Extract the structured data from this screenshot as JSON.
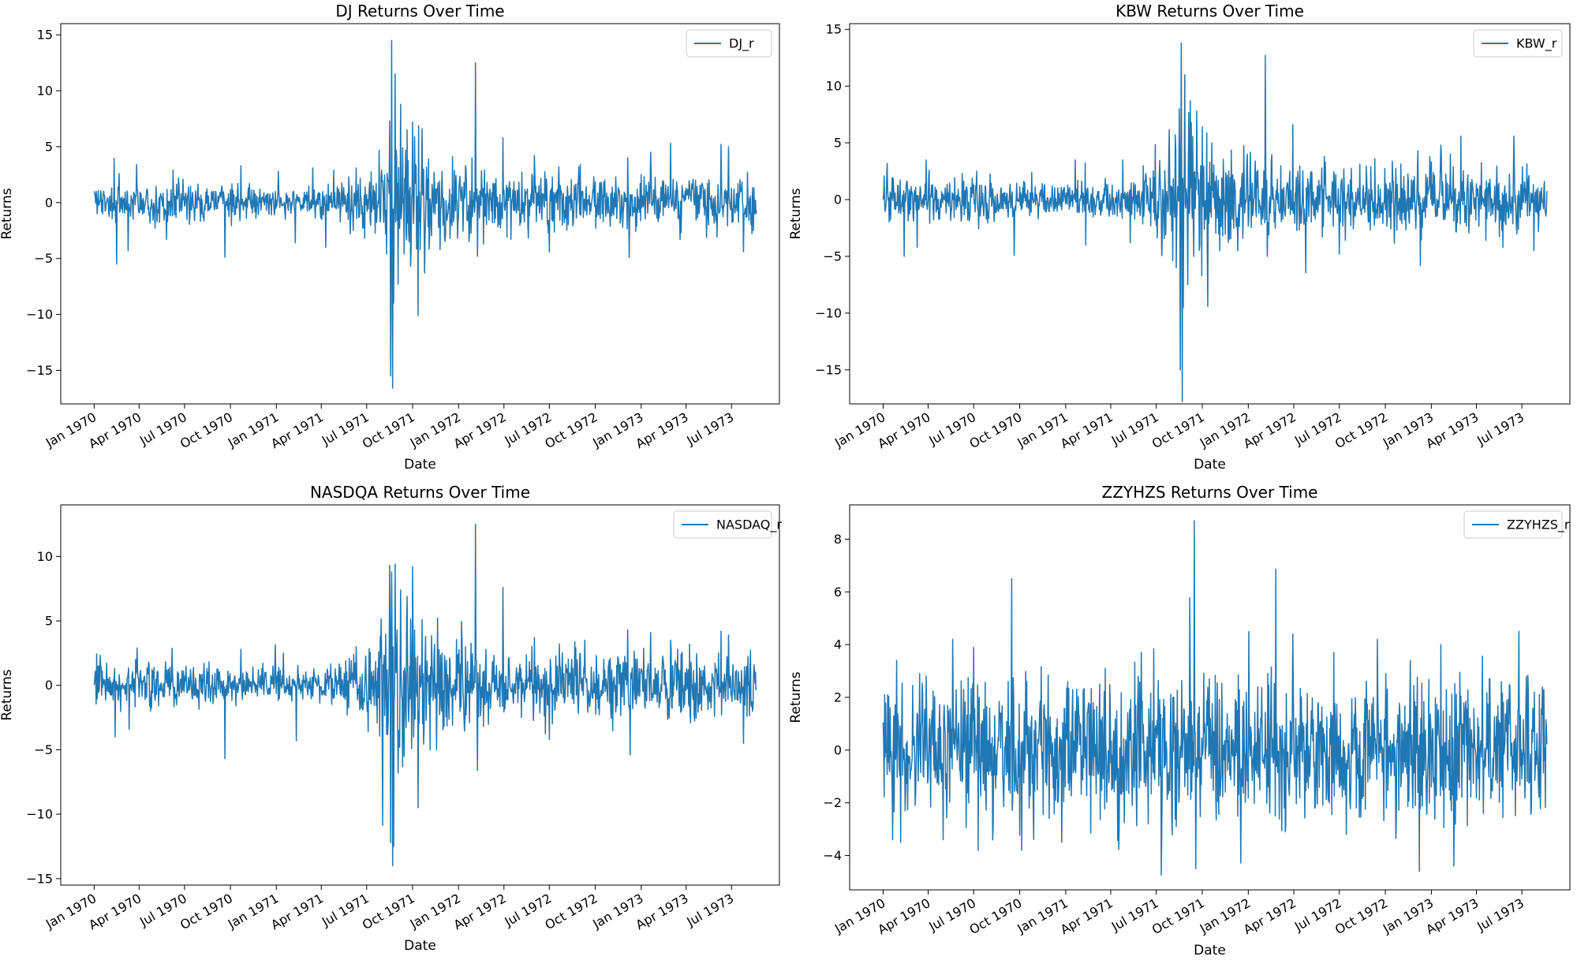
{
  "chart_data": [
    {
      "type": "line",
      "title": "DJ Returns Over Time",
      "xlabel": "Date",
      "ylabel": "Returns",
      "x_tick_labels": [
        "Jan 1970",
        "Apr 1970",
        "Jul 1970",
        "Oct 1970",
        "Jan 1971",
        "Apr 1971",
        "Jul 1971",
        "Oct 1971",
        "Jan 1972",
        "Apr 1972",
        "Jul 1972",
        "Oct 1972",
        "Jan 1973",
        "Apr 1973",
        "Jul 1973"
      ],
      "xlim": [
        "1969-10-26",
        "1973-10-05"
      ],
      "y_ticks": [
        -15,
        -10,
        -5,
        0,
        5,
        10,
        15
      ],
      "ylim": [
        -18,
        16
      ],
      "grid": false,
      "legend_position": "top-right",
      "color": "#1f77b4",
      "series": [
        {
          "name": "DJ_r",
          "base_std": [
            [
              0,
              0.9
            ],
            [
              0.33,
              0.6
            ],
            [
              0.376,
              0.9
            ],
            [
              0.45,
              2.5
            ],
            [
              0.55,
              1.8
            ],
            [
              0.6,
              1.2
            ],
            [
              1,
              1.2
            ]
          ],
          "spikes": [
            {
              "x": "1970-01-02",
              "y": 0.8
            },
            {
              "x": "1970-02-15",
              "y": -5.5
            },
            {
              "x": "1970-02-20",
              "y": 2.6
            },
            {
              "x": "1970-03-27",
              "y": 3.4
            },
            {
              "x": "1970-03-10",
              "y": -4.3
            },
            {
              "x": "1970-06-08",
              "y": 2.9
            },
            {
              "x": "1970-09-20",
              "y": -4.9
            },
            {
              "x": "1970-10-22",
              "y": 3.3
            },
            {
              "x": "1971-01-05",
              "y": 2.8
            },
            {
              "x": "1971-02-08",
              "y": -3.6
            },
            {
              "x": "1971-03-15",
              "y": 3.1
            },
            {
              "x": "1971-04-10",
              "y": -4.0
            },
            {
              "x": "1971-04-26",
              "y": 2.9
            },
            {
              "x": "1971-06-10",
              "y": 3.1
            },
            {
              "x": "1971-08-10",
              "y": -4.6
            },
            {
              "x": "1971-08-16",
              "y": 7.3
            },
            {
              "x": "1971-08-18",
              "y": -15.5
            },
            {
              "x": "1971-08-20",
              "y": 14.5
            },
            {
              "x": "1971-08-22",
              "y": -16.6
            },
            {
              "x": "1971-08-24",
              "y": -9.0
            },
            {
              "x": "1971-08-27",
              "y": 11.5
            },
            {
              "x": "1971-09-02",
              "y": -7.3
            },
            {
              "x": "1971-09-07",
              "y": 8.8
            },
            {
              "x": "1971-09-14",
              "y": -4.6
            },
            {
              "x": "1971-09-20",
              "y": 6.5
            },
            {
              "x": "1971-09-27",
              "y": -5.7
            },
            {
              "x": "1971-10-01",
              "y": 7.2
            },
            {
              "x": "1971-10-05",
              "y": 5.9
            },
            {
              "x": "1971-10-12",
              "y": -10.1
            },
            {
              "x": "1971-10-20",
              "y": 6.6
            },
            {
              "x": "1971-10-25",
              "y": -6.3
            },
            {
              "x": "1971-11-02",
              "y": 3.9
            },
            {
              "x": "1971-11-25",
              "y": -4.2
            },
            {
              "x": "1972-01-15",
              "y": 3.3
            },
            {
              "x": "1972-02-04",
              "y": 12.5
            },
            {
              "x": "1972-02-08",
              "y": -4.8
            },
            {
              "x": "1972-03-30",
              "y": 5.8
            },
            {
              "x": "1972-04-15",
              "y": -3.3
            },
            {
              "x": "1972-06-01",
              "y": 4.2
            },
            {
              "x": "1972-07-01",
              "y": -4.4
            },
            {
              "x": "1972-09-01",
              "y": 3.4
            },
            {
              "x": "1972-12-05",
              "y": 4.0
            },
            {
              "x": "1972-12-08",
              "y": -4.9
            },
            {
              "x": "1973-01-20",
              "y": 4.5
            },
            {
              "x": "1973-03-01",
              "y": 5.3
            },
            {
              "x": "1973-03-20",
              "y": -3.3
            },
            {
              "x": "1973-06-10",
              "y": 5.2
            },
            {
              "x": "1973-06-25",
              "y": 5.0
            },
            {
              "x": "1973-07-25",
              "y": -4.4
            },
            {
              "x": "1973-08-15",
              "y": 1.3
            }
          ]
        }
      ]
    },
    {
      "type": "line",
      "title": "KBW Returns Over Time",
      "xlabel": "Date",
      "ylabel": "Returns",
      "x_tick_labels": [
        "Jan 1970",
        "Apr 1970",
        "Jul 1970",
        "Oct 1970",
        "Jan 1971",
        "Apr 1971",
        "Jul 1971",
        "Oct 1971",
        "Jan 1972",
        "Apr 1972",
        "Jul 1972",
        "Oct 1972",
        "Jan 1973",
        "Apr 1973",
        "Jul 1973"
      ],
      "xlim": [
        "1969-10-26",
        "1973-10-05"
      ],
      "y_ticks": [
        -15,
        -10,
        -5,
        0,
        5,
        10,
        15
      ],
      "ylim": [
        -18,
        15.5
      ],
      "grid": false,
      "legend_position": "top-right",
      "color": "#1f77b4",
      "series": [
        {
          "name": "KBW_r",
          "base_std": [
            [
              0,
              1.0
            ],
            [
              0.33,
              0.7
            ],
            [
              0.376,
              1.0
            ],
            [
              0.45,
              2.6
            ],
            [
              0.55,
              1.9
            ],
            [
              0.6,
              1.4
            ],
            [
              1,
              1.4
            ]
          ],
          "spikes": [
            {
              "x": "1970-01-02",
              "y": 0.5
            },
            {
              "x": "1970-02-12",
              "y": -5.0
            },
            {
              "x": "1970-03-28",
              "y": 3.5
            },
            {
              "x": "1970-03-10",
              "y": -4.2
            },
            {
              "x": "1970-06-08",
              "y": 2.3
            },
            {
              "x": "1970-09-20",
              "y": -4.9
            },
            {
              "x": "1970-10-25",
              "y": 2.4
            },
            {
              "x": "1971-01-20",
              "y": 3.5
            },
            {
              "x": "1971-02-10",
              "y": -4.0
            },
            {
              "x": "1971-04-25",
              "y": 3.5
            },
            {
              "x": "1971-05-10",
              "y": -3.8
            },
            {
              "x": "1971-08-10",
              "y": -6.0
            },
            {
              "x": "1971-08-16",
              "y": 8.0
            },
            {
              "x": "1971-08-18",
              "y": -15.0
            },
            {
              "x": "1971-08-20",
              "y": 13.8
            },
            {
              "x": "1971-08-22",
              "y": -17.8
            },
            {
              "x": "1971-08-24",
              "y": -9.5
            },
            {
              "x": "1971-08-27",
              "y": 11.0
            },
            {
              "x": "1971-09-02",
              "y": -7.5
            },
            {
              "x": "1971-09-07",
              "y": 8.7
            },
            {
              "x": "1971-09-14",
              "y": -5.0
            },
            {
              "x": "1971-09-20",
              "y": 7.8
            },
            {
              "x": "1971-10-01",
              "y": 6.4
            },
            {
              "x": "1971-10-12",
              "y": -9.4
            },
            {
              "x": "1971-10-20",
              "y": 5.0
            },
            {
              "x": "1971-11-05",
              "y": -4.5
            },
            {
              "x": "1972-01-15",
              "y": 3.4
            },
            {
              "x": "1972-02-04",
              "y": 12.7
            },
            {
              "x": "1972-02-08",
              "y": -5.0
            },
            {
              "x": "1972-03-30",
              "y": 6.6
            },
            {
              "x": "1972-06-01",
              "y": 3.8
            },
            {
              "x": "1972-07-01",
              "y": -4.8
            },
            {
              "x": "1972-09-10",
              "y": 3.6
            },
            {
              "x": "1972-12-05",
              "y": 4.3
            },
            {
              "x": "1972-12-10",
              "y": -5.8
            },
            {
              "x": "1973-01-20",
              "y": 4.8
            },
            {
              "x": "1973-03-01",
              "y": 5.6
            },
            {
              "x": "1973-04-20",
              "y": -3.6
            },
            {
              "x": "1973-06-15",
              "y": 5.6
            },
            {
              "x": "1973-07-25",
              "y": -4.5
            },
            {
              "x": "1973-08-15",
              "y": 1.6
            }
          ]
        }
      ]
    },
    {
      "type": "line",
      "title": "NASDQA Returns Over Time",
      "xlabel": "Date",
      "ylabel": "Returns",
      "x_tick_labels": [
        "Jan 1970",
        "Apr 1970",
        "Jul 1970",
        "Oct 1970",
        "Jan 1971",
        "Apr 1971",
        "Jul 1971",
        "Oct 1971",
        "Jan 1972",
        "Apr 1972",
        "Jul 1972",
        "Oct 1972",
        "Jan 1973",
        "Apr 1973",
        "Jul 1973"
      ],
      "xlim": [
        "1969-10-26",
        "1973-10-05"
      ],
      "y_ticks": [
        -15,
        -10,
        -5,
        0,
        5,
        10
      ],
      "ylim": [
        -15.5,
        14
      ],
      "grid": false,
      "legend_position": "top-right",
      "color": "#1f77b4",
      "series": [
        {
          "name": "NASDAQ_r",
          "base_std": [
            [
              0,
              0.9
            ],
            [
              0.33,
              0.5
            ],
            [
              0.376,
              0.9
            ],
            [
              0.45,
              2.7
            ],
            [
              0.55,
              1.9
            ],
            [
              0.6,
              1.3
            ],
            [
              1,
              1.3
            ]
          ],
          "spikes": [
            {
              "x": "1970-01-02",
              "y": 0.4
            },
            {
              "x": "1970-02-12",
              "y": -4.0
            },
            {
              "x": "1970-03-28",
              "y": 2.9
            },
            {
              "x": "1970-03-12",
              "y": -3.4
            },
            {
              "x": "1970-09-20",
              "y": -5.7
            },
            {
              "x": "1970-10-22",
              "y": 2.8
            },
            {
              "x": "1971-01-15",
              "y": 2.5
            },
            {
              "x": "1971-02-10",
              "y": -4.3
            },
            {
              "x": "1971-06-10",
              "y": 3.0
            },
            {
              "x": "1971-08-10",
              "y": -3.8
            },
            {
              "x": "1971-08-16",
              "y": 9.3
            },
            {
              "x": "1971-08-18",
              "y": -12.2
            },
            {
              "x": "1971-08-20",
              "y": 8.8
            },
            {
              "x": "1971-08-22",
              "y": -14.0
            },
            {
              "x": "1971-08-24",
              "y": -12.5
            },
            {
              "x": "1971-08-27",
              "y": 9.4
            },
            {
              "x": "1971-09-02",
              "y": -6.8
            },
            {
              "x": "1971-09-07",
              "y": 7.4
            },
            {
              "x": "1971-09-14",
              "y": -5.5
            },
            {
              "x": "1971-09-20",
              "y": 6.9
            },
            {
              "x": "1971-10-01",
              "y": 9.2
            },
            {
              "x": "1971-10-12",
              "y": -9.5
            },
            {
              "x": "1971-10-20",
              "y": 5.1
            },
            {
              "x": "1971-11-05",
              "y": -5.0
            },
            {
              "x": "1971-11-20",
              "y": 5.2
            },
            {
              "x": "1972-01-15",
              "y": 3.0
            },
            {
              "x": "1972-02-04",
              "y": 12.5
            },
            {
              "x": "1972-02-08",
              "y": -6.6
            },
            {
              "x": "1972-03-30",
              "y": 7.6
            },
            {
              "x": "1972-06-01",
              "y": 3.7
            },
            {
              "x": "1972-07-01",
              "y": -4.2
            },
            {
              "x": "1972-09-10",
              "y": 3.5
            },
            {
              "x": "1972-12-05",
              "y": 4.3
            },
            {
              "x": "1972-12-10",
              "y": -5.4
            },
            {
              "x": "1973-01-20",
              "y": 4.1
            },
            {
              "x": "1973-03-01",
              "y": 3.5
            },
            {
              "x": "1973-06-10",
              "y": 4.2
            },
            {
              "x": "1973-06-25",
              "y": 3.9
            },
            {
              "x": "1973-07-25",
              "y": -4.5
            },
            {
              "x": "1973-08-15",
              "y": 1.6
            }
          ]
        }
      ]
    },
    {
      "type": "line",
      "title": "ZZYHZS Returns Over Time",
      "xlabel": "Date",
      "ylabel": "Returns",
      "x_tick_labels": [
        "Jan 1970",
        "Apr 1970",
        "Jul 1970",
        "Oct 1970",
        "Jan 1971",
        "Apr 1971",
        "Jul 1971",
        "Oct 1971",
        "Jan 1972",
        "Apr 1972",
        "Jul 1972",
        "Oct 1972",
        "Jan 1973",
        "Apr 1973",
        "Jul 1973"
      ],
      "xlim": [
        "1969-10-26",
        "1973-10-05"
      ],
      "y_ticks": [
        -4,
        -2,
        0,
        2,
        4,
        6,
        8
      ],
      "ylim": [
        -5.3,
        9.3
      ],
      "grid": false,
      "legend_position": "top-right",
      "color": "#1f77b4",
      "series": [
        {
          "name": "ZZYHZS_r",
          "base_std": [
            [
              0,
              1.3
            ],
            [
              1,
              1.3
            ]
          ],
          "spikes": [
            {
              "x": "1970-01-02",
              "y": 0.3
            },
            {
              "x": "1970-01-10",
              "y": 2.1
            },
            {
              "x": "1970-01-20",
              "y": -3.4
            },
            {
              "x": "1970-01-28",
              "y": 3.4
            },
            {
              "x": "1970-02-05",
              "y": -3.5
            },
            {
              "x": "1970-03-15",
              "y": 2.9
            },
            {
              "x": "1970-05-01",
              "y": -3.4
            },
            {
              "x": "1970-05-20",
              "y": 4.2
            },
            {
              "x": "1970-07-01",
              "y": 3.9
            },
            {
              "x": "1970-07-10",
              "y": -3.8
            },
            {
              "x": "1970-09-15",
              "y": 6.5
            },
            {
              "x": "1970-10-05",
              "y": -3.8
            },
            {
              "x": "1970-10-15",
              "y": 2.6
            },
            {
              "x": "1971-03-10",
              "y": 2.5
            },
            {
              "x": "1971-06-15",
              "y": -2.8
            },
            {
              "x": "1971-08-10",
              "y": -2.9
            },
            {
              "x": "1971-09-15",
              "y": 8.7
            },
            {
              "x": "1971-09-18",
              "y": -4.5
            },
            {
              "x": "1971-10-15",
              "y": 2.7
            },
            {
              "x": "1972-01-20",
              "y": 2.4
            },
            {
              "x": "1972-03-15",
              "y": -3.1
            },
            {
              "x": "1972-03-30",
              "y": 4.4
            },
            {
              "x": "1972-06-20",
              "y": 3.7
            },
            {
              "x": "1972-07-15",
              "y": -3.2
            },
            {
              "x": "1972-09-15",
              "y": 4.2
            },
            {
              "x": "1972-11-20",
              "y": 3.4
            },
            {
              "x": "1972-12-08",
              "y": -4.6
            },
            {
              "x": "1973-01-20",
              "y": 4.0
            },
            {
              "x": "1973-02-15",
              "y": -4.4
            },
            {
              "x": "1973-04-15",
              "y": -2.4
            },
            {
              "x": "1973-06-25",
              "y": 4.5
            },
            {
              "x": "1973-07-10",
              "y": 2.8
            },
            {
              "x": "1973-08-15",
              "y": -0.4
            }
          ]
        }
      ]
    }
  ]
}
